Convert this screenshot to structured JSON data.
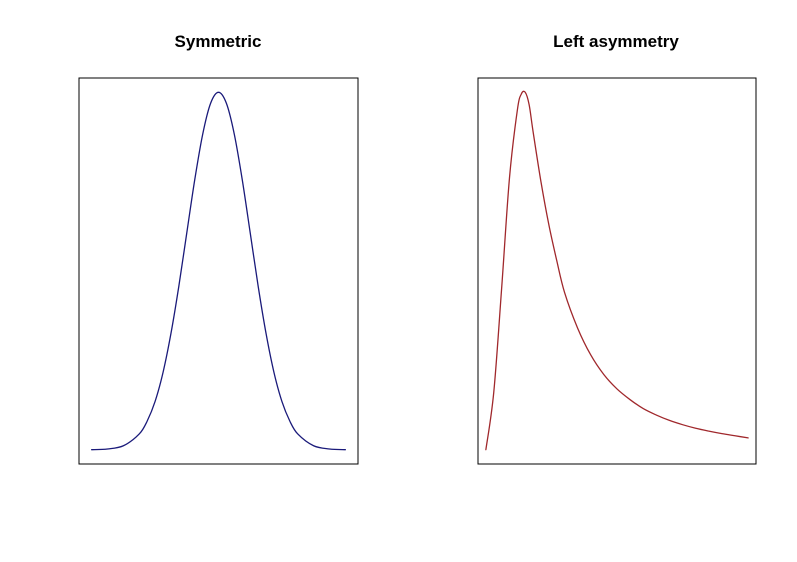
{
  "chart_data": [
    {
      "type": "line",
      "title": "Symmetric",
      "xlabel": "",
      "ylabel": "",
      "grid": false,
      "axes_visible": false,
      "xlim": [
        -4.4,
        4.4
      ],
      "ylim": [
        -0.04,
        1.04
      ],
      "series": [
        {
          "color": "#1a1a7a",
          "x": [
            -4.0,
            -3.5,
            -3.0,
            -2.5,
            -2.25,
            -2.0,
            -1.75,
            -1.5,
            -1.25,
            -1.0,
            -0.75,
            -0.5,
            -0.25,
            0.0,
            0.25,
            0.5,
            0.75,
            1.0,
            1.25,
            1.5,
            1.75,
            2.0,
            2.25,
            2.5,
            3.0,
            3.5,
            4.0
          ],
          "y": [
            0.0,
            0.002,
            0.011,
            0.044,
            0.08,
            0.135,
            0.216,
            0.325,
            0.458,
            0.607,
            0.755,
            0.882,
            0.969,
            1.0,
            0.969,
            0.882,
            0.755,
            0.607,
            0.458,
            0.325,
            0.216,
            0.135,
            0.08,
            0.044,
            0.011,
            0.002,
            0.0
          ]
        }
      ]
    },
    {
      "type": "line",
      "title": "Left asymmetry",
      "xlabel": "",
      "ylabel": "",
      "grid": false,
      "axes_visible": false,
      "xlim": [
        -0.3,
        10.3
      ],
      "ylim": [
        -0.04,
        1.04
      ],
      "series": [
        {
          "color": "#a0282c",
          "x": [
            0.0,
            0.3,
            0.6,
            0.9,
            1.2,
            1.35,
            1.5,
            1.65,
            1.8,
            2.1,
            2.4,
            2.7,
            3.0,
            3.5,
            4.0,
            4.5,
            5.0,
            5.5,
            6.0,
            6.5,
            7.0,
            7.5,
            8.0,
            8.5,
            9.0,
            9.5,
            10.0
          ],
          "y": [
            0.0,
            0.16,
            0.45,
            0.76,
            0.95,
            0.995,
            1.0,
            0.965,
            0.89,
            0.75,
            0.63,
            0.53,
            0.44,
            0.34,
            0.265,
            0.21,
            0.17,
            0.14,
            0.115,
            0.097,
            0.082,
            0.07,
            0.06,
            0.052,
            0.045,
            0.039,
            0.033
          ]
        }
      ]
    }
  ]
}
